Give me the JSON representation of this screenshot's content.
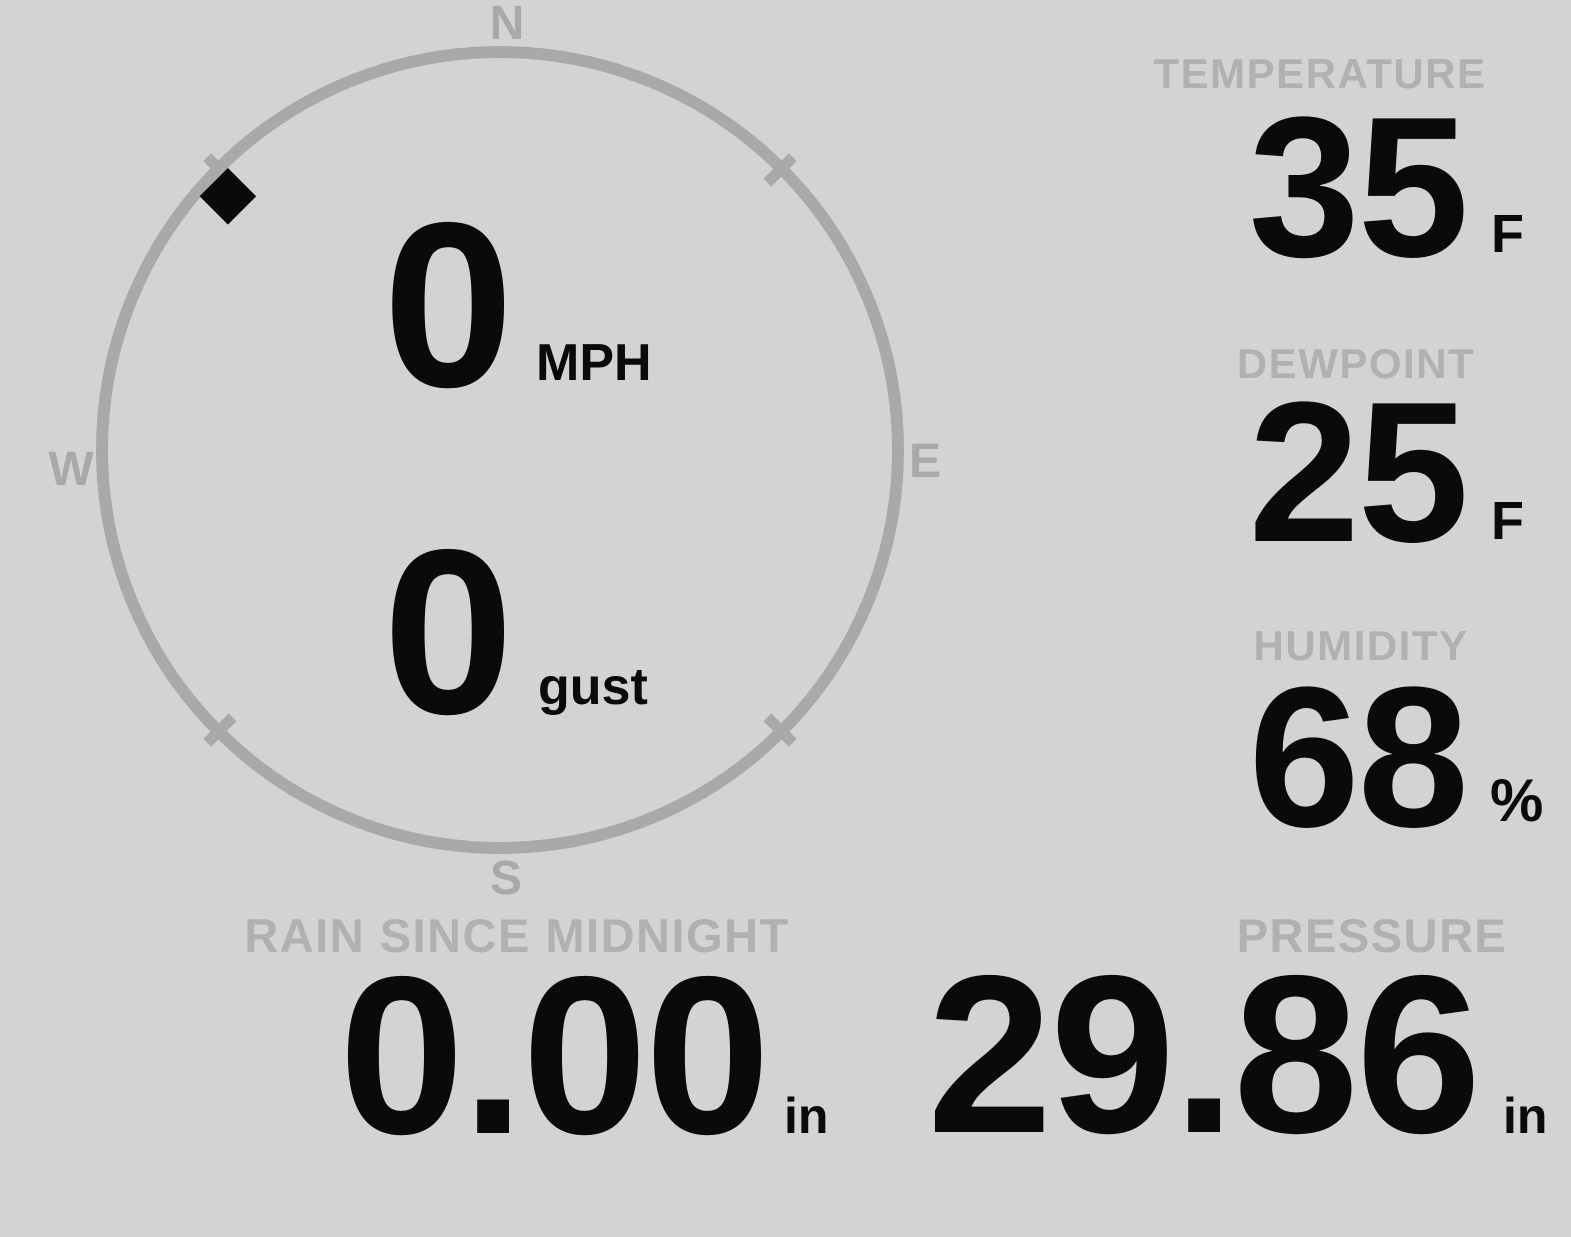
{
  "colors": {
    "background": "#d3d3d3",
    "gauge_ring": "#a9a9a9",
    "section_label": "#b1b1b1",
    "value_text": "#0a0a0a",
    "wind_marker": "#0a0a0a"
  },
  "wind": {
    "speed": {
      "value": "0",
      "unit": "MPH"
    },
    "gust": {
      "value": "0",
      "unit": "gust"
    },
    "direction_degrees": 313,
    "compass": {
      "north": "N",
      "east": "E",
      "south": "S",
      "west": "W"
    }
  },
  "metrics": {
    "temperature": {
      "label": "TEMPERATURE",
      "value": "35",
      "unit": "F"
    },
    "dewpoint": {
      "label": "DEWPOINT",
      "value": "25",
      "unit": "F"
    },
    "humidity": {
      "label": "HUMIDITY",
      "value": "68",
      "unit": "%"
    },
    "rain_since_midnight": {
      "label": "RAIN SINCE MIDNIGHT",
      "value": "0.00",
      "unit": "in"
    },
    "pressure": {
      "label": "PRESSURE",
      "value": "29.86",
      "unit": "in"
    }
  }
}
